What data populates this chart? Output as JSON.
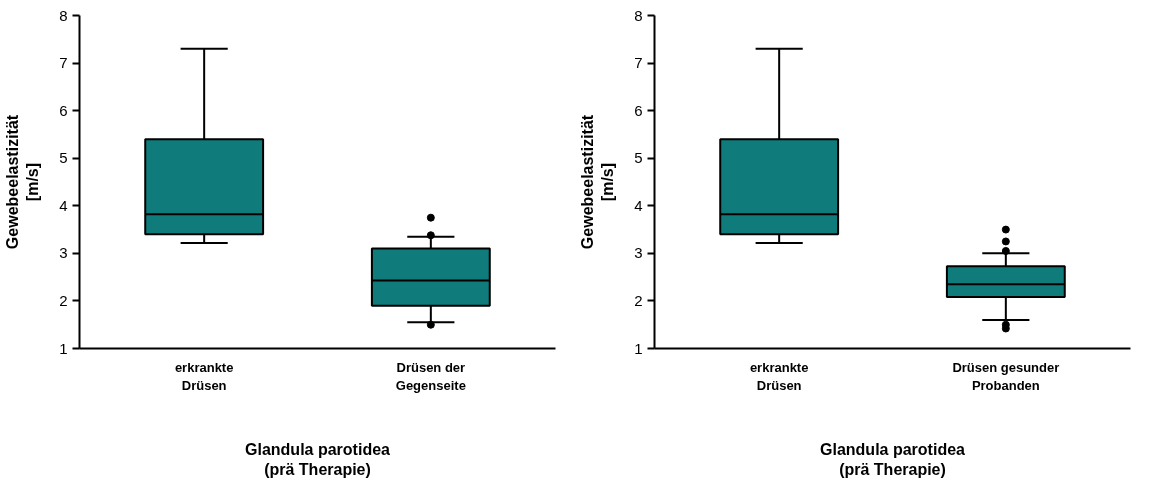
{
  "chart_data": [
    {
      "type": "box",
      "categories": [
        "erkrankte\nDrüsen",
        "Drüsen der\nGegenseite"
      ],
      "xlabel": "Glandula parotidea\n(prä Therapie)",
      "ylabel": "Gewebeelastizität\n[m/s]",
      "ylim": [
        1,
        8
      ],
      "yticks": [
        1,
        2,
        3,
        4,
        5,
        6,
        7,
        8
      ],
      "grid": false,
      "color": "#0f7b7b",
      "boxes": [
        {
          "low": 3.22,
          "q1": 3.4,
          "median": 3.82,
          "q3": 5.4,
          "high": 7.3
        },
        {
          "low": 1.55,
          "q1": 1.9,
          "median": 2.43,
          "q3": 3.1,
          "high": 3.35,
          "outliers": [
            3.75,
            3.38,
            1.5
          ]
        }
      ]
    },
    {
      "type": "box",
      "categories": [
        "erkrankte\nDrüsen",
        "Drüsen gesunder\nProbanden"
      ],
      "xlabel": "Glandula parotidea\n(prä Therapie)",
      "ylabel": "Gewebeelastizität\n[m/s]",
      "ylim": [
        1,
        8
      ],
      "yticks": [
        1,
        2,
        3,
        4,
        5,
        6,
        7,
        8
      ],
      "grid": false,
      "color": "#0f7b7b",
      "boxes": [
        {
          "low": 3.22,
          "q1": 3.4,
          "median": 3.82,
          "q3": 5.4,
          "high": 7.3
        },
        {
          "low": 1.6,
          "q1": 2.08,
          "median": 2.35,
          "q3": 2.73,
          "high": 3.0,
          "outliers": [
            3.5,
            3.25,
            3.05,
            1.5,
            1.42
          ]
        }
      ]
    }
  ]
}
